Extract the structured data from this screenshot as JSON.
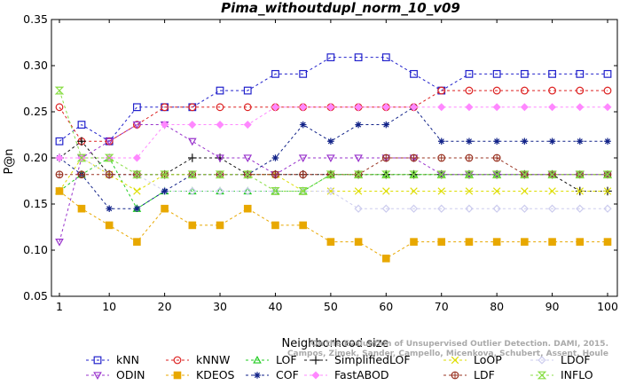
{
  "chart_data": {
    "type": "line",
    "title": "Pima_withoutdupl_norm_10_v09",
    "xlabel": "Neighborhood size",
    "ylabel": "P@n",
    "xlim": [
      0,
      100
    ],
    "ylim": [
      0.05,
      0.35
    ],
    "xticks": [
      1,
      10,
      20,
      30,
      40,
      50,
      60,
      70,
      80,
      90,
      100
    ],
    "yticks": [
      "0.05",
      "0.10",
      "0.15",
      "0.20",
      "0.25",
      "0.30",
      "0.35"
    ],
    "grid": false,
    "legend_position": "bottom",
    "credit": [
      "Campos, Zimek, Sander, Campello, Micenkova, Schubert, Assent, Houle",
      "On the Evaluation of Unsupervised Outlier Detection. DAMI, 2015."
    ],
    "x": [
      1,
      5,
      10,
      15,
      20,
      25,
      30,
      35,
      40,
      45,
      50,
      55,
      60,
      65,
      70,
      75,
      80,
      85,
      90,
      95,
      100
    ],
    "series": [
      {
        "name": "kNN",
        "color": "#2222cc",
        "marker": "square",
        "values": [
          0.218,
          0.236,
          0.218,
          0.255,
          0.255,
          0.255,
          0.273,
          0.273,
          0.291,
          0.291,
          0.309,
          0.309,
          0.309,
          0.291,
          0.273,
          0.291,
          0.291,
          0.291,
          0.291,
          0.291,
          0.291
        ]
      },
      {
        "name": "kNNW",
        "color": "#dd2222",
        "marker": "circle",
        "values": [
          0.255,
          0.218,
          0.218,
          0.236,
          0.255,
          0.255,
          0.255,
          0.255,
          0.255,
          0.255,
          0.255,
          0.255,
          0.255,
          0.255,
          0.273,
          0.273,
          0.273,
          0.273,
          0.273,
          0.273,
          0.273
        ]
      },
      {
        "name": "LOF",
        "color": "#22cc22",
        "marker": "triangle-up",
        "values": [
          0.164,
          0.182,
          0.2,
          0.145,
          0.164,
          0.164,
          0.164,
          0.164,
          0.164,
          0.164,
          0.182,
          0.182,
          0.182,
          0.182,
          0.182,
          0.182,
          0.182,
          0.182,
          0.182,
          0.182,
          0.182
        ]
      },
      {
        "name": "SimplifiedLOF",
        "color": "#111111",
        "marker": "plus",
        "values": [
          0.2,
          0.218,
          0.182,
          0.182,
          0.182,
          0.2,
          0.2,
          0.182,
          0.182,
          0.182,
          0.182,
          0.182,
          0.182,
          0.182,
          0.182,
          0.182,
          0.182,
          0.182,
          0.182,
          0.164,
          0.164
        ]
      },
      {
        "name": "LoOP",
        "color": "#dddd00",
        "marker": "x",
        "values": [
          0.164,
          0.2,
          0.182,
          0.164,
          0.182,
          0.182,
          0.182,
          0.182,
          0.182,
          0.164,
          0.164,
          0.164,
          0.164,
          0.164,
          0.164,
          0.164,
          0.164,
          0.164,
          0.164,
          0.164,
          0.164
        ]
      },
      {
        "name": "LDOF",
        "color": "#ccccee",
        "marker": "diamond",
        "values": [
          0.2,
          0.2,
          0.182,
          0.182,
          0.164,
          0.164,
          0.164,
          0.164,
          0.164,
          0.164,
          0.164,
          0.145,
          0.145,
          0.145,
          0.145,
          0.145,
          0.145,
          0.145,
          0.145,
          0.145,
          0.145
        ]
      },
      {
        "name": "ODIN",
        "color": "#9933cc",
        "marker": "triangle-down",
        "values": [
          0.109,
          0.2,
          0.218,
          0.236,
          0.236,
          0.218,
          0.2,
          0.2,
          0.182,
          0.2,
          0.2,
          0.2,
          0.2,
          0.2,
          0.182,
          0.182,
          0.182,
          0.182,
          0.182,
          0.182,
          0.182
        ]
      },
      {
        "name": "KDEOS",
        "color": "#e8a800",
        "marker": "square-filled",
        "values": [
          0.164,
          0.145,
          0.127,
          0.109,
          0.145,
          0.127,
          0.127,
          0.145,
          0.127,
          0.127,
          0.109,
          0.109,
          0.091,
          0.109,
          0.109,
          0.109,
          0.109,
          0.109,
          0.109,
          0.109,
          0.109
        ]
      },
      {
        "name": "COF",
        "color": "#112288",
        "marker": "star",
        "values": [
          0.2,
          0.182,
          0.145,
          0.145,
          0.164,
          0.182,
          0.182,
          0.182,
          0.2,
          0.236,
          0.218,
          0.236,
          0.236,
          0.255,
          0.218,
          0.218,
          0.218,
          0.218,
          0.218,
          0.218,
          0.218
        ]
      },
      {
        "name": "FastABOD",
        "color": "#ff88ff",
        "marker": "diamond-filled",
        "values": [
          0.2,
          0.2,
          0.2,
          0.2,
          0.236,
          0.236,
          0.236,
          0.236,
          0.255,
          0.255,
          0.255,
          0.255,
          0.255,
          0.255,
          0.255,
          0.255,
          0.255,
          0.255,
          0.255,
          0.255,
          0.255
        ]
      },
      {
        "name": "LDF",
        "color": "#993322",
        "marker": "circle-cross",
        "values": [
          0.182,
          0.182,
          0.182,
          0.182,
          0.182,
          0.182,
          0.182,
          0.182,
          0.182,
          0.182,
          0.182,
          0.182,
          0.2,
          0.2,
          0.2,
          0.2,
          0.2,
          0.182,
          0.182,
          0.182,
          0.182
        ]
      },
      {
        "name": "INFLO",
        "color": "#88dd44",
        "marker": "hourglass",
        "values": [
          0.273,
          0.2,
          0.2,
          0.182,
          0.182,
          0.182,
          0.182,
          0.182,
          0.164,
          0.164,
          0.182,
          0.182,
          0.182,
          0.182,
          0.182,
          0.182,
          0.182,
          0.182,
          0.182,
          0.182,
          0.182
        ]
      }
    ]
  }
}
